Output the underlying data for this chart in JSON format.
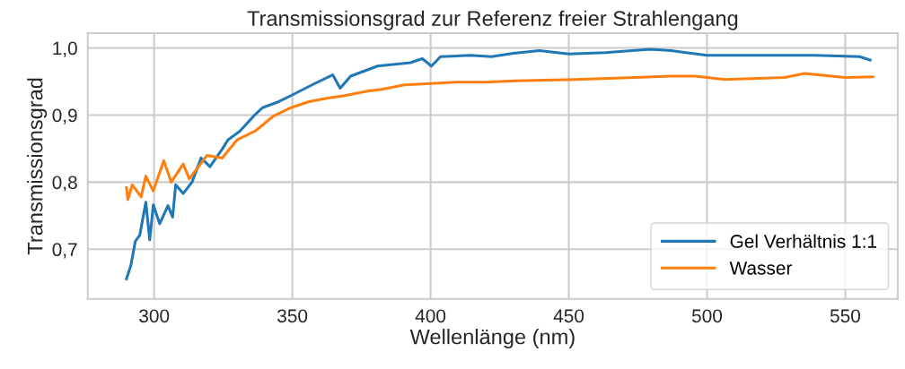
{
  "chart_data": {
    "type": "line",
    "title": "Transmissionsgrad zur Referenz freier Strahlengang",
    "xlabel": "Wellenlänge (nm)",
    "ylabel": "Transmissionsgrad",
    "xlim": [
      276,
      569
    ],
    "xticks": [
      300,
      350,
      400,
      450,
      500,
      550
    ],
    "ylim": [
      0.626,
      1.022
    ],
    "yticks": [
      {
        "value": 0.7,
        "label": "0,7"
      },
      {
        "value": 0.8,
        "label": "0,8"
      },
      {
        "value": 0.9,
        "label": "0,9"
      },
      {
        "value": 1.0,
        "label": "1,0"
      }
    ],
    "grid": true,
    "legend": "bottom right",
    "marker": "none",
    "line_style": "solid",
    "series": [
      {
        "name": "Gel Verhältnis 1:1",
        "color": "#1f77b4",
        "x": [
          290,
          291.6,
          293.2,
          294.8,
          297,
          298.4,
          299.7,
          302,
          305,
          306.7,
          307.8,
          310.5,
          313.7,
          317,
          320.2,
          324.6,
          326.7,
          331,
          335.9,
          339.2,
          345.1,
          349.5,
          358.1,
          364.6,
          367.3,
          371.1,
          380.8,
          392.7,
          397,
          400.3,
          403.6,
          414.4,
          422,
          430,
          439.4,
          450,
          463.2,
          479.4,
          487,
          500,
          517.3,
          539,
          555.2,
          559
        ],
        "values": [
          0.656,
          0.676,
          0.712,
          0.721,
          0.77,
          0.714,
          0.766,
          0.738,
          0.765,
          0.748,
          0.796,
          0.783,
          0.8,
          0.836,
          0.823,
          0.849,
          0.863,
          0.876,
          0.898,
          0.911,
          0.92,
          0.929,
          0.947,
          0.96,
          0.94,
          0.958,
          0.973,
          0.978,
          0.984,
          0.973,
          0.987,
          0.989,
          0.987,
          0.992,
          0.996,
          0.991,
          0.993,
          0.998,
          0.996,
          0.989,
          0.989,
          0.989,
          0.987,
          0.982
        ]
      },
      {
        "name": "Wasser",
        "color": "#ff7f0e",
        "x": [
          290,
          290.5,
          292.1,
          295.3,
          297,
          299.7,
          303.5,
          306.2,
          310.5,
          312.7,
          319.2,
          324.6,
          330,
          336.5,
          343,
          349.5,
          356,
          362.4,
          368.9,
          377.6,
          381.9,
          390.6,
          400.3,
          409,
          419.9,
          430.7,
          452.4,
          474,
          487,
          495.7,
          506.5,
          528.1,
          535.2,
          549.8,
          560
        ],
        "values": [
          0.792,
          0.774,
          0.796,
          0.778,
          0.809,
          0.787,
          0.832,
          0.8,
          0.827,
          0.805,
          0.84,
          0.836,
          0.863,
          0.876,
          0.898,
          0.911,
          0.92,
          0.925,
          0.929,
          0.936,
          0.938,
          0.945,
          0.947,
          0.949,
          0.949,
          0.951,
          0.953,
          0.956,
          0.958,
          0.958,
          0.953,
          0.956,
          0.962,
          0.956,
          0.957
        ]
      }
    ]
  }
}
